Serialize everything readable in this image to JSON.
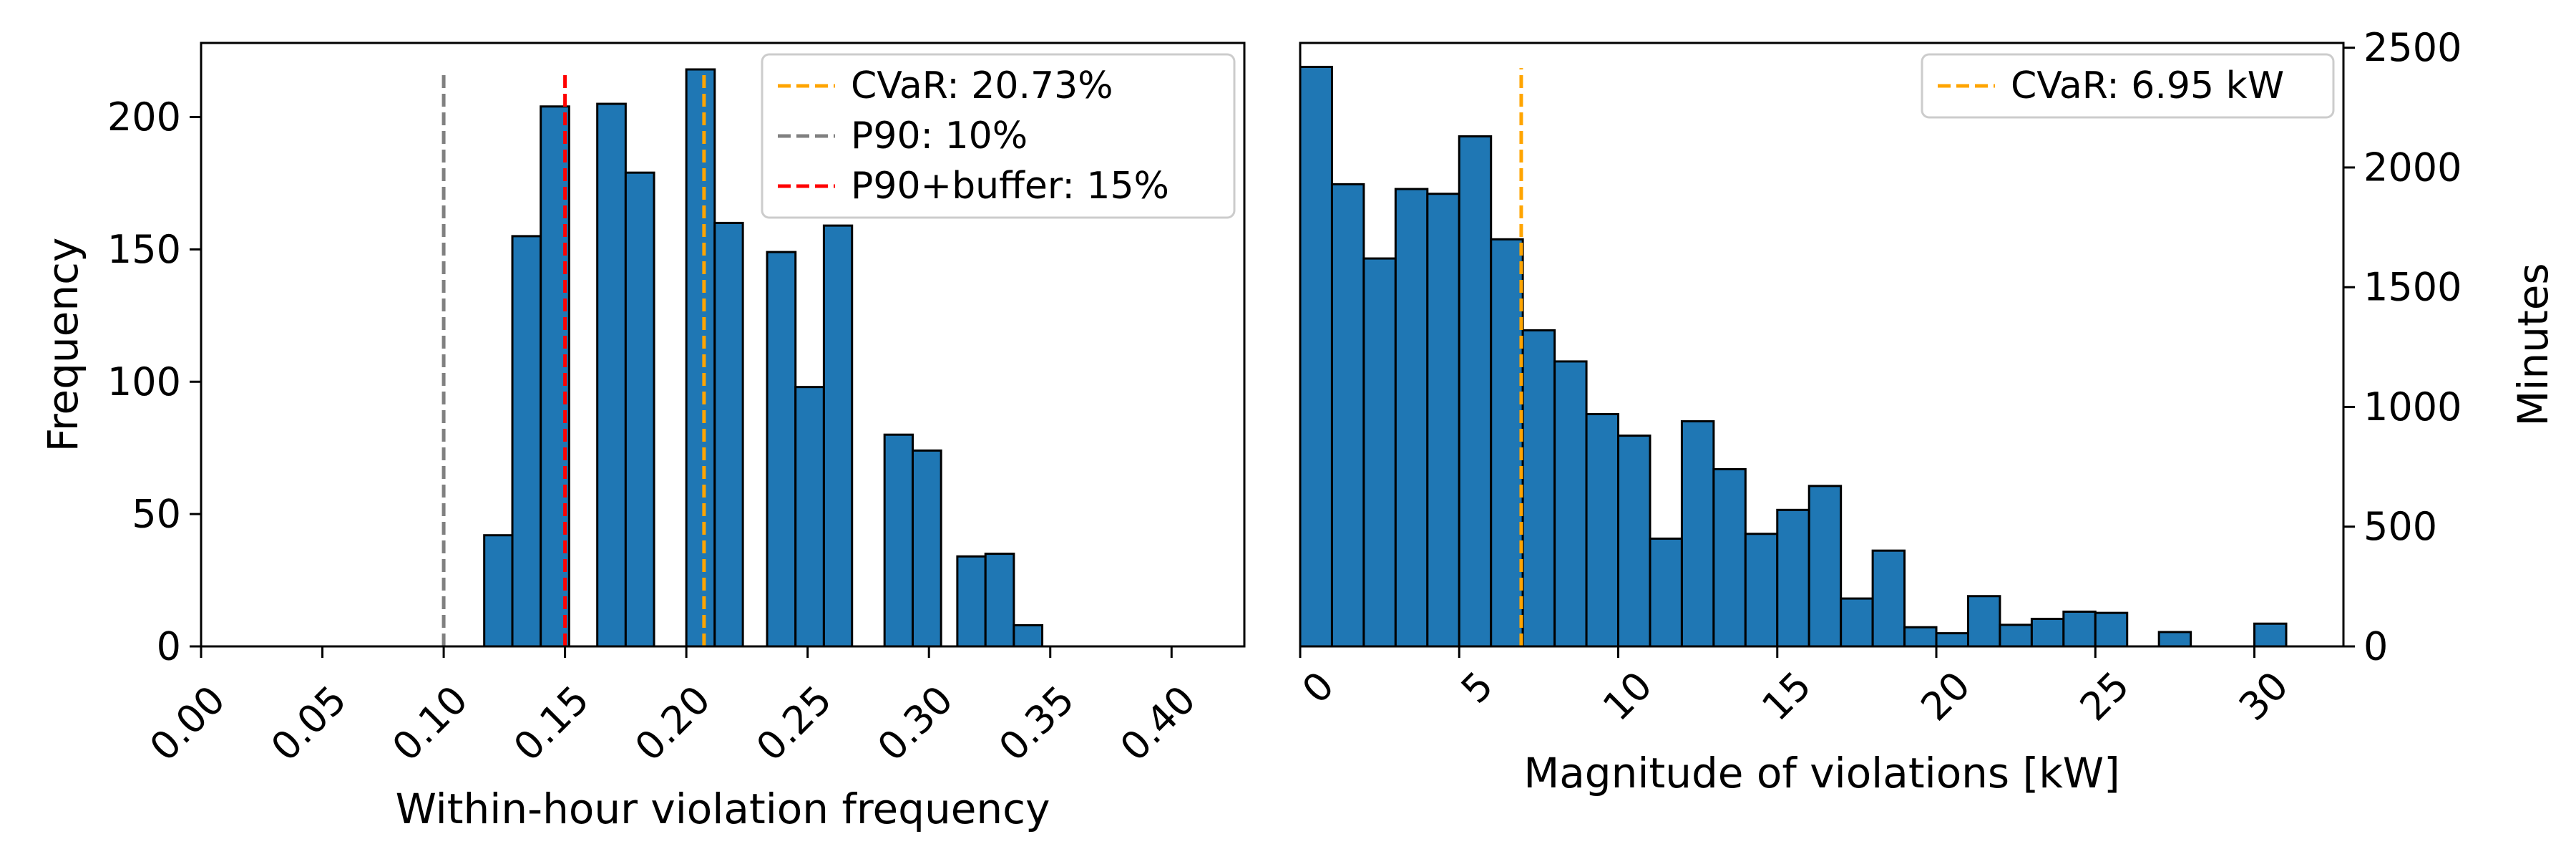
{
  "chart_data": [
    {
      "type": "bar",
      "xlabel": "Within-hour violation frequency",
      "ylabel": "Frequency",
      "xlim": [
        0,
        0.43
      ],
      "ylim": [
        0,
        228
      ],
      "xticks": [
        "0.00",
        "0.05",
        "0.10",
        "0.15",
        "0.20",
        "0.25",
        "0.30",
        "0.35",
        "0.40"
      ],
      "xtick_values": [
        0,
        0.05,
        0.1,
        0.15,
        0.2,
        0.25,
        0.3,
        0.35,
        0.4
      ],
      "yticks": [
        "0",
        "50",
        "100",
        "150",
        "200"
      ],
      "ytick_values": [
        0,
        50,
        100,
        150,
        200
      ],
      "bins": [
        {
          "x0": 0.1167,
          "x1": 0.1283,
          "value": 42
        },
        {
          "x0": 0.1283,
          "x1": 0.14,
          "value": 155
        },
        {
          "x0": 0.14,
          "x1": 0.1517,
          "value": 204
        },
        {
          "x0": 0.1633,
          "x1": 0.175,
          "value": 205
        },
        {
          "x0": 0.175,
          "x1": 0.1867,
          "value": 179
        },
        {
          "x0": 0.2,
          "x1": 0.2117,
          "value": 218
        },
        {
          "x0": 0.2117,
          "x1": 0.2233,
          "value": 160
        },
        {
          "x0": 0.2333,
          "x1": 0.245,
          "value": 149
        },
        {
          "x0": 0.245,
          "x1": 0.2567,
          "value": 98
        },
        {
          "x0": 0.2567,
          "x1": 0.2683,
          "value": 159
        },
        {
          "x0": 0.2817,
          "x1": 0.2933,
          "value": 80
        },
        {
          "x0": 0.2933,
          "x1": 0.305,
          "value": 74
        },
        {
          "x0": 0.3117,
          "x1": 0.3233,
          "value": 34
        },
        {
          "x0": 0.3233,
          "x1": 0.335,
          "value": 35
        },
        {
          "x0": 0.335,
          "x1": 0.3467,
          "value": 8
        }
      ],
      "ref_lines": [
        {
          "label": "CVaR: 20.73%",
          "x": 0.2073,
          "color": "#ffa500"
        },
        {
          "label": "P90: 10%",
          "x": 0.1,
          "color": "#808080"
        },
        {
          "label": "P90+buffer: 15%",
          "x": 0.15,
          "color": "#ff0000"
        }
      ],
      "ref_line_top": 218,
      "legend": "top-right",
      "bar_color": "#1f77b4",
      "grid": false
    },
    {
      "type": "bar",
      "xlabel": "Magnitude of violations [kW]",
      "ylabel": "Minutes",
      "y_axis_side": "right",
      "xlim": [
        0,
        32.8
      ],
      "ylim": [
        0,
        2520
      ],
      "xticks": [
        "0",
        "5",
        "10",
        "15",
        "20",
        "25",
        "30"
      ],
      "xtick_values": [
        0,
        5,
        10,
        15,
        20,
        25,
        30
      ],
      "yticks": [
        "0",
        "500",
        "1000",
        "1500",
        "2000",
        "2500"
      ],
      "ytick_values": [
        0,
        500,
        1000,
        1500,
        2000,
        2500
      ],
      "bin_width": 1.0,
      "bin_start": 0,
      "values": [
        2420,
        1930,
        1620,
        1910,
        1890,
        2130,
        1700,
        1320,
        1190,
        970,
        880,
        450,
        940,
        740,
        470,
        570,
        670,
        200,
        400,
        80,
        55,
        210,
        90,
        115,
        145,
        140,
        0,
        60,
        0,
        0,
        95
      ],
      "ref_lines": [
        {
          "label": "CVaR: 6.95 kW",
          "x": 6.95,
          "color": "#ffa500"
        }
      ],
      "ref_line_top": 2415,
      "legend": "top-right",
      "bar_color": "#1f77b4",
      "grid": false
    }
  ]
}
